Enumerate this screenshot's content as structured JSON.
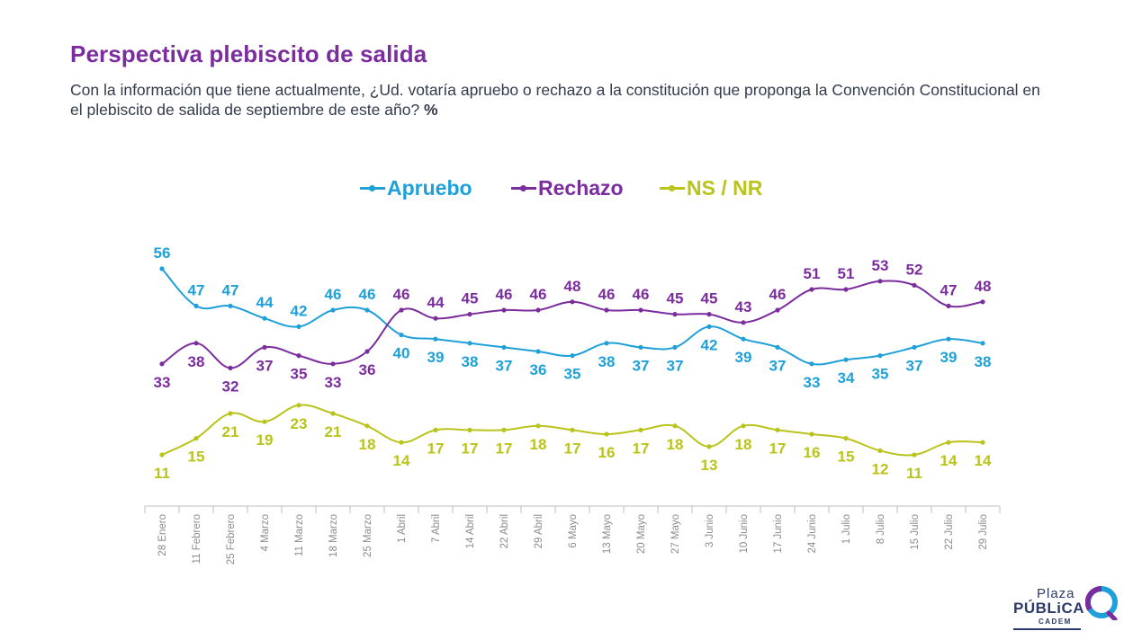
{
  "title": "Perspectiva plebiscito de salida",
  "subtitle": "Con la información que tiene actualmente, ¿Ud. votaría apruebo o rechazo a la constitución que proponga la Convención Constitucional en el plebiscito de salida de septiembre de este año?",
  "subtitle_unit": "%",
  "logo": {
    "line1": "Plaza",
    "line2": "PÚBLiCA",
    "line3": "CADEM"
  },
  "colors": {
    "apruebo": "#1fa0d8",
    "rechazo": "#7b2d9e",
    "nsnr": "#b9c31a",
    "axis": "#bfbfbf",
    "tick_text": "#8c8c8c"
  },
  "chart_data": {
    "type": "line",
    "categories": [
      "28 Enero",
      "11 Febrero",
      "25 Febrero",
      "4 Marzo",
      "11 Marzo",
      "18 Marzo",
      "25 Marzo",
      "1 Abril",
      "7 Abril",
      "14 Abril",
      "22 Abril",
      "29 Abril",
      "6 Mayo",
      "13 Mayo",
      "20 Mayo",
      "27 Mayo",
      "3 Junio",
      "10 Junio",
      "17 Junio",
      "24 Junio",
      "1 Julio",
      "8 Julio",
      "15 Julio",
      "22 Julio",
      "29 Julio"
    ],
    "series": [
      {
        "name": "Apruebo",
        "values": [
          56,
          47,
          47,
          44,
          42,
          46,
          46,
          40,
          39,
          38,
          37,
          36,
          35,
          38,
          37,
          37,
          42,
          39,
          37,
          33,
          34,
          35,
          37,
          39,
          38
        ]
      },
      {
        "name": "Rechazo",
        "values": [
          33,
          38,
          32,
          37,
          35,
          33,
          36,
          46,
          44,
          45,
          46,
          46,
          48,
          46,
          46,
          45,
          45,
          43,
          46,
          51,
          51,
          53,
          52,
          47,
          48
        ]
      },
      {
        "name": "NS / NR",
        "values": [
          11,
          15,
          21,
          19,
          23,
          21,
          18,
          14,
          17,
          17,
          17,
          18,
          17,
          16,
          17,
          18,
          13,
          18,
          17,
          16,
          15,
          12,
          11,
          14,
          14
        ]
      }
    ],
    "ylim": [
      0,
      60
    ],
    "legend": "top-center",
    "grid": false,
    "xlabel": "",
    "ylabel": ""
  }
}
